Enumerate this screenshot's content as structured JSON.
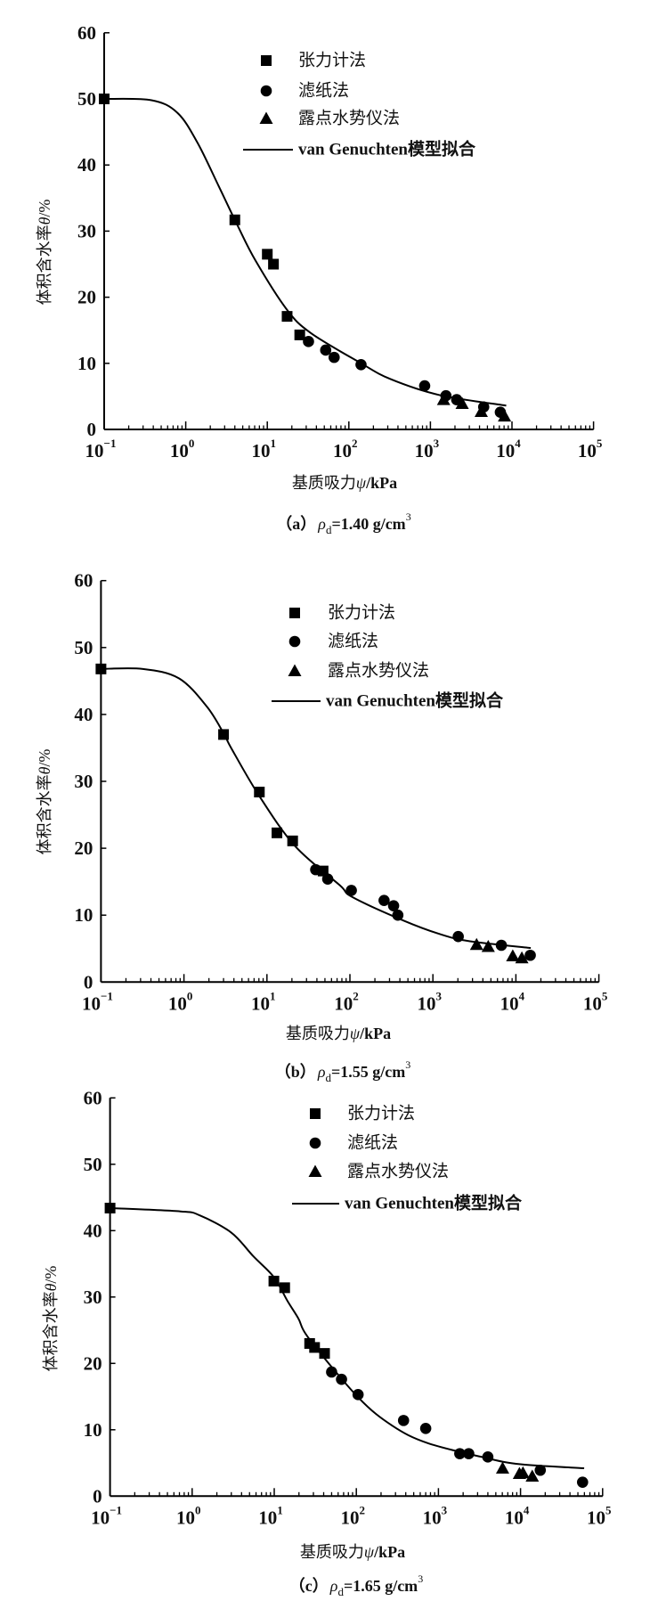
{
  "chart_data": [
    {
      "type": "scatter",
      "panel": "a",
      "caption": {
        "label": "（a）",
        "symbol": "ρ",
        "sub": "d",
        "value": "=1.40 g/cm",
        "sup": "3"
      },
      "xlabel": {
        "prefix": "基质吸力",
        "symbol": "ψ",
        "suffix": "/kPa"
      },
      "ylabel": {
        "prefix": "体积含水率",
        "symbol": "θ",
        "suffix": "/%"
      },
      "xscale": "log",
      "xlim": [
        0.1,
        100000
      ],
      "ylim": [
        0,
        60
      ],
      "x_ticks": [
        {
          "base": "10",
          "exp": "−1"
        },
        {
          "base": "10",
          "exp": "0"
        },
        {
          "base": "10",
          "exp": "1"
        },
        {
          "base": "10",
          "exp": "2"
        },
        {
          "base": "10",
          "exp": "3"
        },
        {
          "base": "10",
          "exp": "4"
        },
        {
          "base": "10",
          "exp": "5"
        }
      ],
      "y_ticks": [
        "0",
        "10",
        "20",
        "30",
        "40",
        "50",
        "60"
      ],
      "legend": [
        "张力计法",
        "滤纸法",
        "露点水势仪法",
        "van Genuchten模型拟合"
      ],
      "series": [
        {
          "name": "张力计法",
          "marker": "square",
          "points": [
            [
              0.1,
              50
            ],
            [
              4.0,
              31.7
            ],
            [
              10,
              26.5
            ],
            [
              11.9,
              25.0
            ],
            [
              17.5,
              17.1
            ],
            [
              25,
              14.3
            ]
          ]
        },
        {
          "name": "滤纸法",
          "marker": "circle",
          "points": [
            [
              32,
              13.3
            ],
            [
              52,
              12.0
            ],
            [
              66,
              10.9
            ],
            [
              141,
              9.8
            ],
            [
              850,
              6.6
            ],
            [
              1550,
              5.1
            ],
            [
              2100,
              4.5
            ],
            [
              4500,
              3.4
            ],
            [
              7200,
              2.6
            ]
          ]
        },
        {
          "name": "露点水势仪法",
          "marker": "triangle",
          "points": [
            [
              1450,
              4.5
            ],
            [
              2450,
              3.9
            ],
            [
              4200,
              2.7
            ],
            [
              8100,
              2.0
            ]
          ]
        },
        {
          "name": "van Genuchten模型拟合",
          "marker": "line",
          "points": [
            [
              0.1,
              50
            ],
            [
              0.38,
              49.8
            ],
            [
              0.79,
              47.9
            ],
            [
              1.39,
              43.4
            ],
            [
              2.56,
              36.7
            ],
            [
              4.3,
              30.9
            ],
            [
              7.2,
              25.5
            ],
            [
              17.2,
              18.2
            ],
            [
              34,
              14.6
            ],
            [
              137,
              10.1
            ],
            [
              326,
              7.6
            ],
            [
              1290,
              5.2
            ],
            [
              8500,
              3.6
            ]
          ]
        }
      ]
    },
    {
      "type": "scatter",
      "panel": "b",
      "caption": {
        "label": "（b）",
        "symbol": "ρ",
        "sub": "d",
        "value": "=1.55 g/cm",
        "sup": "3"
      },
      "xlabel": {
        "prefix": "基质吸力",
        "symbol": "ψ",
        "suffix": "/kPa"
      },
      "ylabel": {
        "prefix": "体积含水率",
        "symbol": "θ",
        "suffix": "/%"
      },
      "xscale": "log",
      "xlim": [
        0.1,
        100000
      ],
      "ylim": [
        0,
        60
      ],
      "x_ticks": [
        {
          "base": "10",
          "exp": "−1"
        },
        {
          "base": "10",
          "exp": "0"
        },
        {
          "base": "10",
          "exp": "1"
        },
        {
          "base": "10",
          "exp": "2"
        },
        {
          "base": "10",
          "exp": "3"
        },
        {
          "base": "10",
          "exp": "4"
        },
        {
          "base": "10",
          "exp": "5"
        }
      ],
      "y_ticks": [
        "0",
        "10",
        "20",
        "30",
        "40",
        "50",
        "60"
      ],
      "legend": [
        "张力计法",
        "滤纸法",
        "露点水势仪法",
        "van Genuchten模型拟合"
      ],
      "series": [
        {
          "name": "张力计法",
          "marker": "square",
          "points": [
            [
              0.1,
              46.8
            ],
            [
              3.0,
              37.0
            ],
            [
              8.1,
              28.4
            ],
            [
              13.2,
              22.3
            ],
            [
              20.4,
              21.1
            ],
            [
              47.5,
              16.6
            ]
          ]
        },
        {
          "name": "滤纸法",
          "marker": "circle",
          "points": [
            [
              38.7,
              16.8
            ],
            [
              54,
              15.4
            ],
            [
              104,
              13.7
            ],
            [
              258,
              12.2
            ],
            [
              336,
              11.4
            ],
            [
              378,
              10.0
            ],
            [
              2020,
              6.8
            ],
            [
              6680,
              5.5
            ],
            [
              14900,
              4.0
            ]
          ]
        },
        {
          "name": "露点水势仪法",
          "marker": "triangle",
          "points": [
            [
              3360,
              5.6
            ],
            [
              4640,
              5.3
            ],
            [
              9170,
              3.9
            ],
            [
              11800,
              3.6
            ]
          ]
        },
        {
          "name": "van Genuchten模型拟合",
          "marker": "line",
          "points": [
            [
              0.1,
              46.8
            ],
            [
              0.32,
              46.8
            ],
            [
              0.87,
              45.4
            ],
            [
              1.88,
              41.2
            ],
            [
              3.0,
              37.2
            ],
            [
              3.74,
              34.9
            ],
            [
              8.1,
              27.8
            ],
            [
              21.9,
              20.3
            ],
            [
              75,
              14.5
            ],
            [
              107,
              12.7
            ],
            [
              440,
              9.2
            ],
            [
              1190,
              7.2
            ],
            [
              2790,
              6.1
            ],
            [
              15100,
              5.1
            ]
          ]
        }
      ]
    },
    {
      "type": "scatter",
      "panel": "c",
      "caption": {
        "label": "（c）",
        "symbol": "ρ",
        "sub": "d",
        "value": "=1.65 g/cm",
        "sup": "3"
      },
      "xlabel": {
        "prefix": "基质吸力",
        "symbol": "ψ",
        "suffix": "/kPa"
      },
      "ylabel": {
        "prefix": "体积含水率",
        "symbol": "θ",
        "suffix": "/%"
      },
      "xscale": "log",
      "xlim": [
        0.1,
        100000
      ],
      "ylim": [
        0,
        60
      ],
      "x_ticks": [
        {
          "base": "10",
          "exp": "−1"
        },
        {
          "base": "10",
          "exp": "0"
        },
        {
          "base": "10",
          "exp": "1"
        },
        {
          "base": "10",
          "exp": "2"
        },
        {
          "base": "10",
          "exp": "3"
        },
        {
          "base": "10",
          "exp": "4"
        },
        {
          "base": "10",
          "exp": "5"
        }
      ],
      "y_ticks": [
        "0",
        "10",
        "20",
        "30",
        "40",
        "50",
        "60"
      ],
      "legend": [
        "张力计法",
        "滤纸法",
        "露点水势仪法",
        "van Genuchten模型拟合"
      ],
      "series": [
        {
          "name": "张力计法",
          "marker": "square",
          "points": [
            [
              0.1,
              43.4
            ],
            [
              9.9,
              32.4
            ],
            [
              13.4,
              31.4
            ],
            [
              27,
              23.0
            ],
            [
              31,
              22.4
            ],
            [
              41,
              21.5
            ]
          ]
        },
        {
          "name": "滤纸法",
          "marker": "circle",
          "points": [
            [
              50,
              18.7
            ],
            [
              66,
              17.6
            ],
            [
              105,
              15.3
            ],
            [
              376,
              11.4
            ],
            [
              700,
              10.2
            ],
            [
              1820,
              6.4
            ],
            [
              2340,
              6.4
            ],
            [
              4000,
              5.9
            ],
            [
              17400,
              3.9
            ],
            [
              57000,
              2.1
            ]
          ]
        },
        {
          "name": "露点水势仪法",
          "marker": "triangle",
          "points": [
            [
              6050,
              4.2
            ],
            [
              9700,
              3.4
            ],
            [
              10700,
              3.5
            ],
            [
              13900,
              3.0
            ]
          ]
        },
        {
          "name": "van Genuchten模型拟合",
          "marker": "line",
          "points": [
            [
              0.1,
              43.4
            ],
            [
              0.72,
              42.9
            ],
            [
              1.24,
              42.3
            ],
            [
              3.0,
              39.7
            ],
            [
              5.6,
              36.1
            ],
            [
              9.9,
              33.0
            ],
            [
              14.5,
              29.4
            ],
            [
              19.6,
              26.8
            ],
            [
              27,
              23.6
            ],
            [
              105,
              14.9
            ],
            [
              275,
              10.6
            ],
            [
              735,
              8.0
            ],
            [
              3660,
              5.8
            ],
            [
              10000,
              4.8
            ],
            [
              59600,
              4.2
            ]
          ]
        }
      ]
    }
  ]
}
